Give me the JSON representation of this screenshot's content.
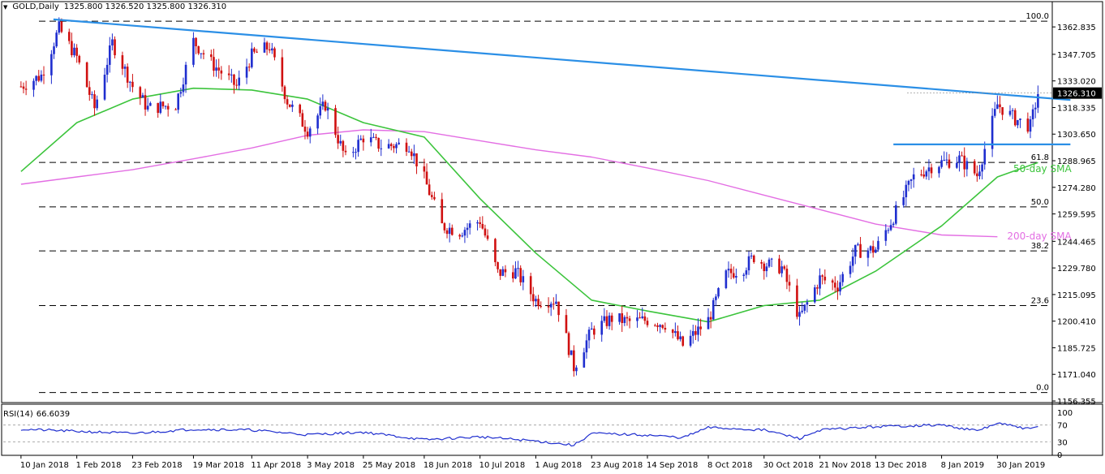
{
  "header": {
    "symbol": "GOLD,Daily",
    "ohlc": "1325.800 1326.520 1325.800 1326.310"
  },
  "rsi": {
    "label": "RSI(14)",
    "value": "66.6039",
    "levels": [
      70,
      30
    ],
    "ticks": [
      "100",
      "70",
      "30",
      "0"
    ]
  },
  "colors": {
    "trendline": "#2b8fe6",
    "resistance": "#2b8fe6",
    "sma50": "#3cc43c",
    "sma200": "#e36ee3",
    "bull": "#1f2ecf",
    "bear": "#d01010",
    "rsi_line": "#1f2ecf",
    "current_price_box": "#000000",
    "axis_text": "#000000"
  },
  "annotations": {
    "sma50_label": "50-day SMA",
    "sma200_label": "200-day SMA"
  },
  "chart_data": {
    "type": "candlestick",
    "title": "GOLD,Daily",
    "xlabel": "",
    "ylabel": "",
    "ylim": [
      1156.355,
      1375.0
    ],
    "y_ticks": [
      "1362.835",
      "1347.705",
      "1333.020",
      "1318.335",
      "1303.650",
      "1288.965",
      "1274.280",
      "1259.595",
      "1244.465",
      "1229.780",
      "1215.095",
      "1200.410",
      "1185.725",
      "1171.040",
      "1156.355"
    ],
    "x_ticks": [
      "10 Jan 2018",
      "1 Feb 2018",
      "23 Feb 2018",
      "19 Mar 2018",
      "11 Apr 2018",
      "3 May 2018",
      "25 May 2018",
      "18 Jun 2018",
      "10 Jul 2018",
      "1 Aug 2018",
      "23 Aug 2018",
      "14 Sep 2018",
      "8 Oct 2018",
      "30 Oct 2018",
      "21 Nov 2018",
      "13 Dec 2018",
      "8 Jan 2019",
      "30 Jan 2019"
    ],
    "current_price": "1326.310",
    "fib_levels": [
      {
        "label": "100.0",
        "price": 1366.0
      },
      {
        "label": "61.8",
        "price": 1288.0
      },
      {
        "label": "50.0",
        "price": 1263.5
      },
      {
        "label": "38.2",
        "price": 1239.2
      },
      {
        "label": "23.6",
        "price": 1209.0
      },
      {
        "label": "0.0",
        "price": 1161.0
      }
    ],
    "price_path": [
      [
        "10 Jan 2018",
        1330
      ],
      [
        "18 Jan 2018",
        1336
      ],
      [
        "25 Jan 2018",
        1362
      ],
      [
        "1 Feb 2018",
        1346
      ],
      [
        "8 Feb 2018",
        1318
      ],
      [
        "15 Feb 2018",
        1354
      ],
      [
        "23 Feb 2018",
        1330
      ],
      [
        "1 Mar 2018",
        1318
      ],
      [
        "12 Mar 2018",
        1320
      ],
      [
        "19 Mar 2018",
        1355
      ],
      [
        "26 Mar 2018",
        1343
      ],
      [
        "5 Apr 2018",
        1330
      ],
      [
        "11 Apr 2018",
        1347
      ],
      [
        "18 Apr 2018",
        1352
      ],
      [
        "25 Apr 2018",
        1322
      ],
      [
        "3 May 2018",
        1306
      ],
      [
        "10 May 2018",
        1320
      ],
      [
        "18 May 2018",
        1290
      ],
      [
        "25 May 2018",
        1302
      ],
      [
        "1 Jun 2018",
        1297
      ],
      [
        "12 Jun 2018",
        1298
      ],
      [
        "18 Jun 2018",
        1279
      ],
      [
        "25 Jun 2018",
        1253
      ],
      [
        "2 Jul 2018",
        1250
      ],
      [
        "10 Jul 2018",
        1256
      ],
      [
        "17 Jul 2018",
        1227
      ],
      [
        "24 Jul 2018",
        1228
      ],
      [
        "1 Aug 2018",
        1212
      ],
      [
        "9 Aug 2018",
        1212
      ],
      [
        "16 Aug 2018",
        1175
      ],
      [
        "23 Aug 2018",
        1195
      ],
      [
        "31 Aug 2018",
        1202
      ],
      [
        "7 Sep 2018",
        1200
      ],
      [
        "14 Sep 2018",
        1201
      ],
      [
        "21 Sep 2018",
        1199
      ],
      [
        "28 Sep 2018",
        1187
      ],
      [
        "8 Oct 2018",
        1201
      ],
      [
        "15 Oct 2018",
        1226
      ],
      [
        "22 Oct 2018",
        1230
      ],
      [
        "26 Oct 2018",
        1236
      ],
      [
        "30 Oct 2018",
        1232
      ],
      [
        "6 Nov 2018",
        1230
      ],
      [
        "13 Nov 2018",
        1202
      ],
      [
        "21 Nov 2018",
        1224
      ],
      [
        "28 Nov 2018",
        1220
      ],
      [
        "5 Dec 2018",
        1239
      ],
      [
        "13 Dec 2018",
        1240
      ],
      [
        "20 Dec 2018",
        1258
      ],
      [
        "28 Dec 2018",
        1280
      ],
      [
        "4 Jan 2019",
        1286
      ],
      [
        "8 Jan 2019",
        1288
      ],
      [
        "15 Jan 2019",
        1290
      ],
      [
        "22 Jan 2019",
        1281
      ],
      [
        "30 Jan 2019",
        1320
      ],
      [
        "6 Feb 2019",
        1312
      ],
      [
        "12 Feb 2019",
        1308
      ],
      [
        "15 Feb 2019",
        1326.31
      ]
    ],
    "series": [
      {
        "name": "50-day SMA",
        "points": [
          [
            "10 Jan 2018",
            1283
          ],
          [
            "1 Feb 2018",
            1310
          ],
          [
            "23 Feb 2018",
            1323
          ],
          [
            "19 Mar 2018",
            1329
          ],
          [
            "11 Apr 2018",
            1328
          ],
          [
            "3 May 2018",
            1323
          ],
          [
            "25 May 2018",
            1310
          ],
          [
            "18 Jun 2018",
            1302
          ],
          [
            "10 Jul 2018",
            1268
          ],
          [
            "1 Aug 2018",
            1238
          ],
          [
            "23 Aug 2018",
            1212
          ],
          [
            "14 Sep 2018",
            1206
          ],
          [
            "8 Oct 2018",
            1200
          ],
          [
            "30 Oct 2018",
            1209
          ],
          [
            "21 Nov 2018",
            1212
          ],
          [
            "13 Dec 2018",
            1228
          ],
          [
            "8 Jan 2019",
            1253
          ],
          [
            "30 Jan 2019",
            1280
          ],
          [
            "15 Feb 2019",
            1288
          ]
        ]
      },
      {
        "name": "200-day SMA",
        "points": [
          [
            "10 Jan 2018",
            1276
          ],
          [
            "1 Feb 2018",
            1280
          ],
          [
            "23 Feb 2018",
            1284
          ],
          [
            "19 Mar 2018",
            1290
          ],
          [
            "11 Apr 2018",
            1296
          ],
          [
            "3 May 2018",
            1303
          ],
          [
            "25 May 2018",
            1306
          ],
          [
            "18 Jun 2018",
            1305
          ],
          [
            "10 Jul 2018",
            1300
          ],
          [
            "1 Aug 2018",
            1295
          ],
          [
            "23 Aug 2018",
            1291
          ],
          [
            "14 Sep 2018",
            1285
          ],
          [
            "8 Oct 2018",
            1278
          ],
          [
            "30 Oct 2018",
            1270
          ],
          [
            "21 Nov 2018",
            1262
          ],
          [
            "13 Dec 2018",
            1254
          ],
          [
            "8 Jan 2019",
            1248
          ],
          [
            "30 Jan 2019",
            1247
          ]
        ]
      },
      {
        "name": "Trendline",
        "points": [
          [
            "10 Jan 2018",
            1367
          ],
          [
            "15 Feb 2019",
            1322.5
          ]
        ]
      },
      {
        "name": "Horizontal resistance",
        "points": [
          [
            "20 Dec 2018",
            1298
          ],
          [
            "15 Feb 2019",
            1298
          ]
        ]
      }
    ],
    "rsi_path": [
      [
        "10 Jan 2018",
        60
      ],
      [
        "1 Feb 2018",
        55
      ],
      [
        "23 Feb 2018",
        50
      ],
      [
        "19 Mar 2018",
        60
      ],
      [
        "11 Apr 2018",
        58
      ],
      [
        "3 May 2018",
        47
      ],
      [
        "25 May 2018",
        53
      ],
      [
        "18 Jun 2018",
        35
      ],
      [
        "10 Jul 2018",
        42
      ],
      [
        "1 Aug 2018",
        32
      ],
      [
        "16 Aug 2018",
        22
      ],
      [
        "23 Aug 2018",
        50
      ],
      [
        "14 Sep 2018",
        46
      ],
      [
        "28 Sep 2018",
        40
      ],
      [
        "8 Oct 2018",
        64
      ],
      [
        "30 Oct 2018",
        58
      ],
      [
        "13 Nov 2018",
        38
      ],
      [
        "21 Nov 2018",
        58
      ],
      [
        "13 Dec 2018",
        66
      ],
      [
        "8 Jan 2019",
        70
      ],
      [
        "22 Jan 2019",
        56
      ],
      [
        "30 Jan 2019",
        74
      ],
      [
        "12 Feb 2019",
        60
      ],
      [
        "15 Feb 2019",
        66.6
      ]
    ]
  }
}
